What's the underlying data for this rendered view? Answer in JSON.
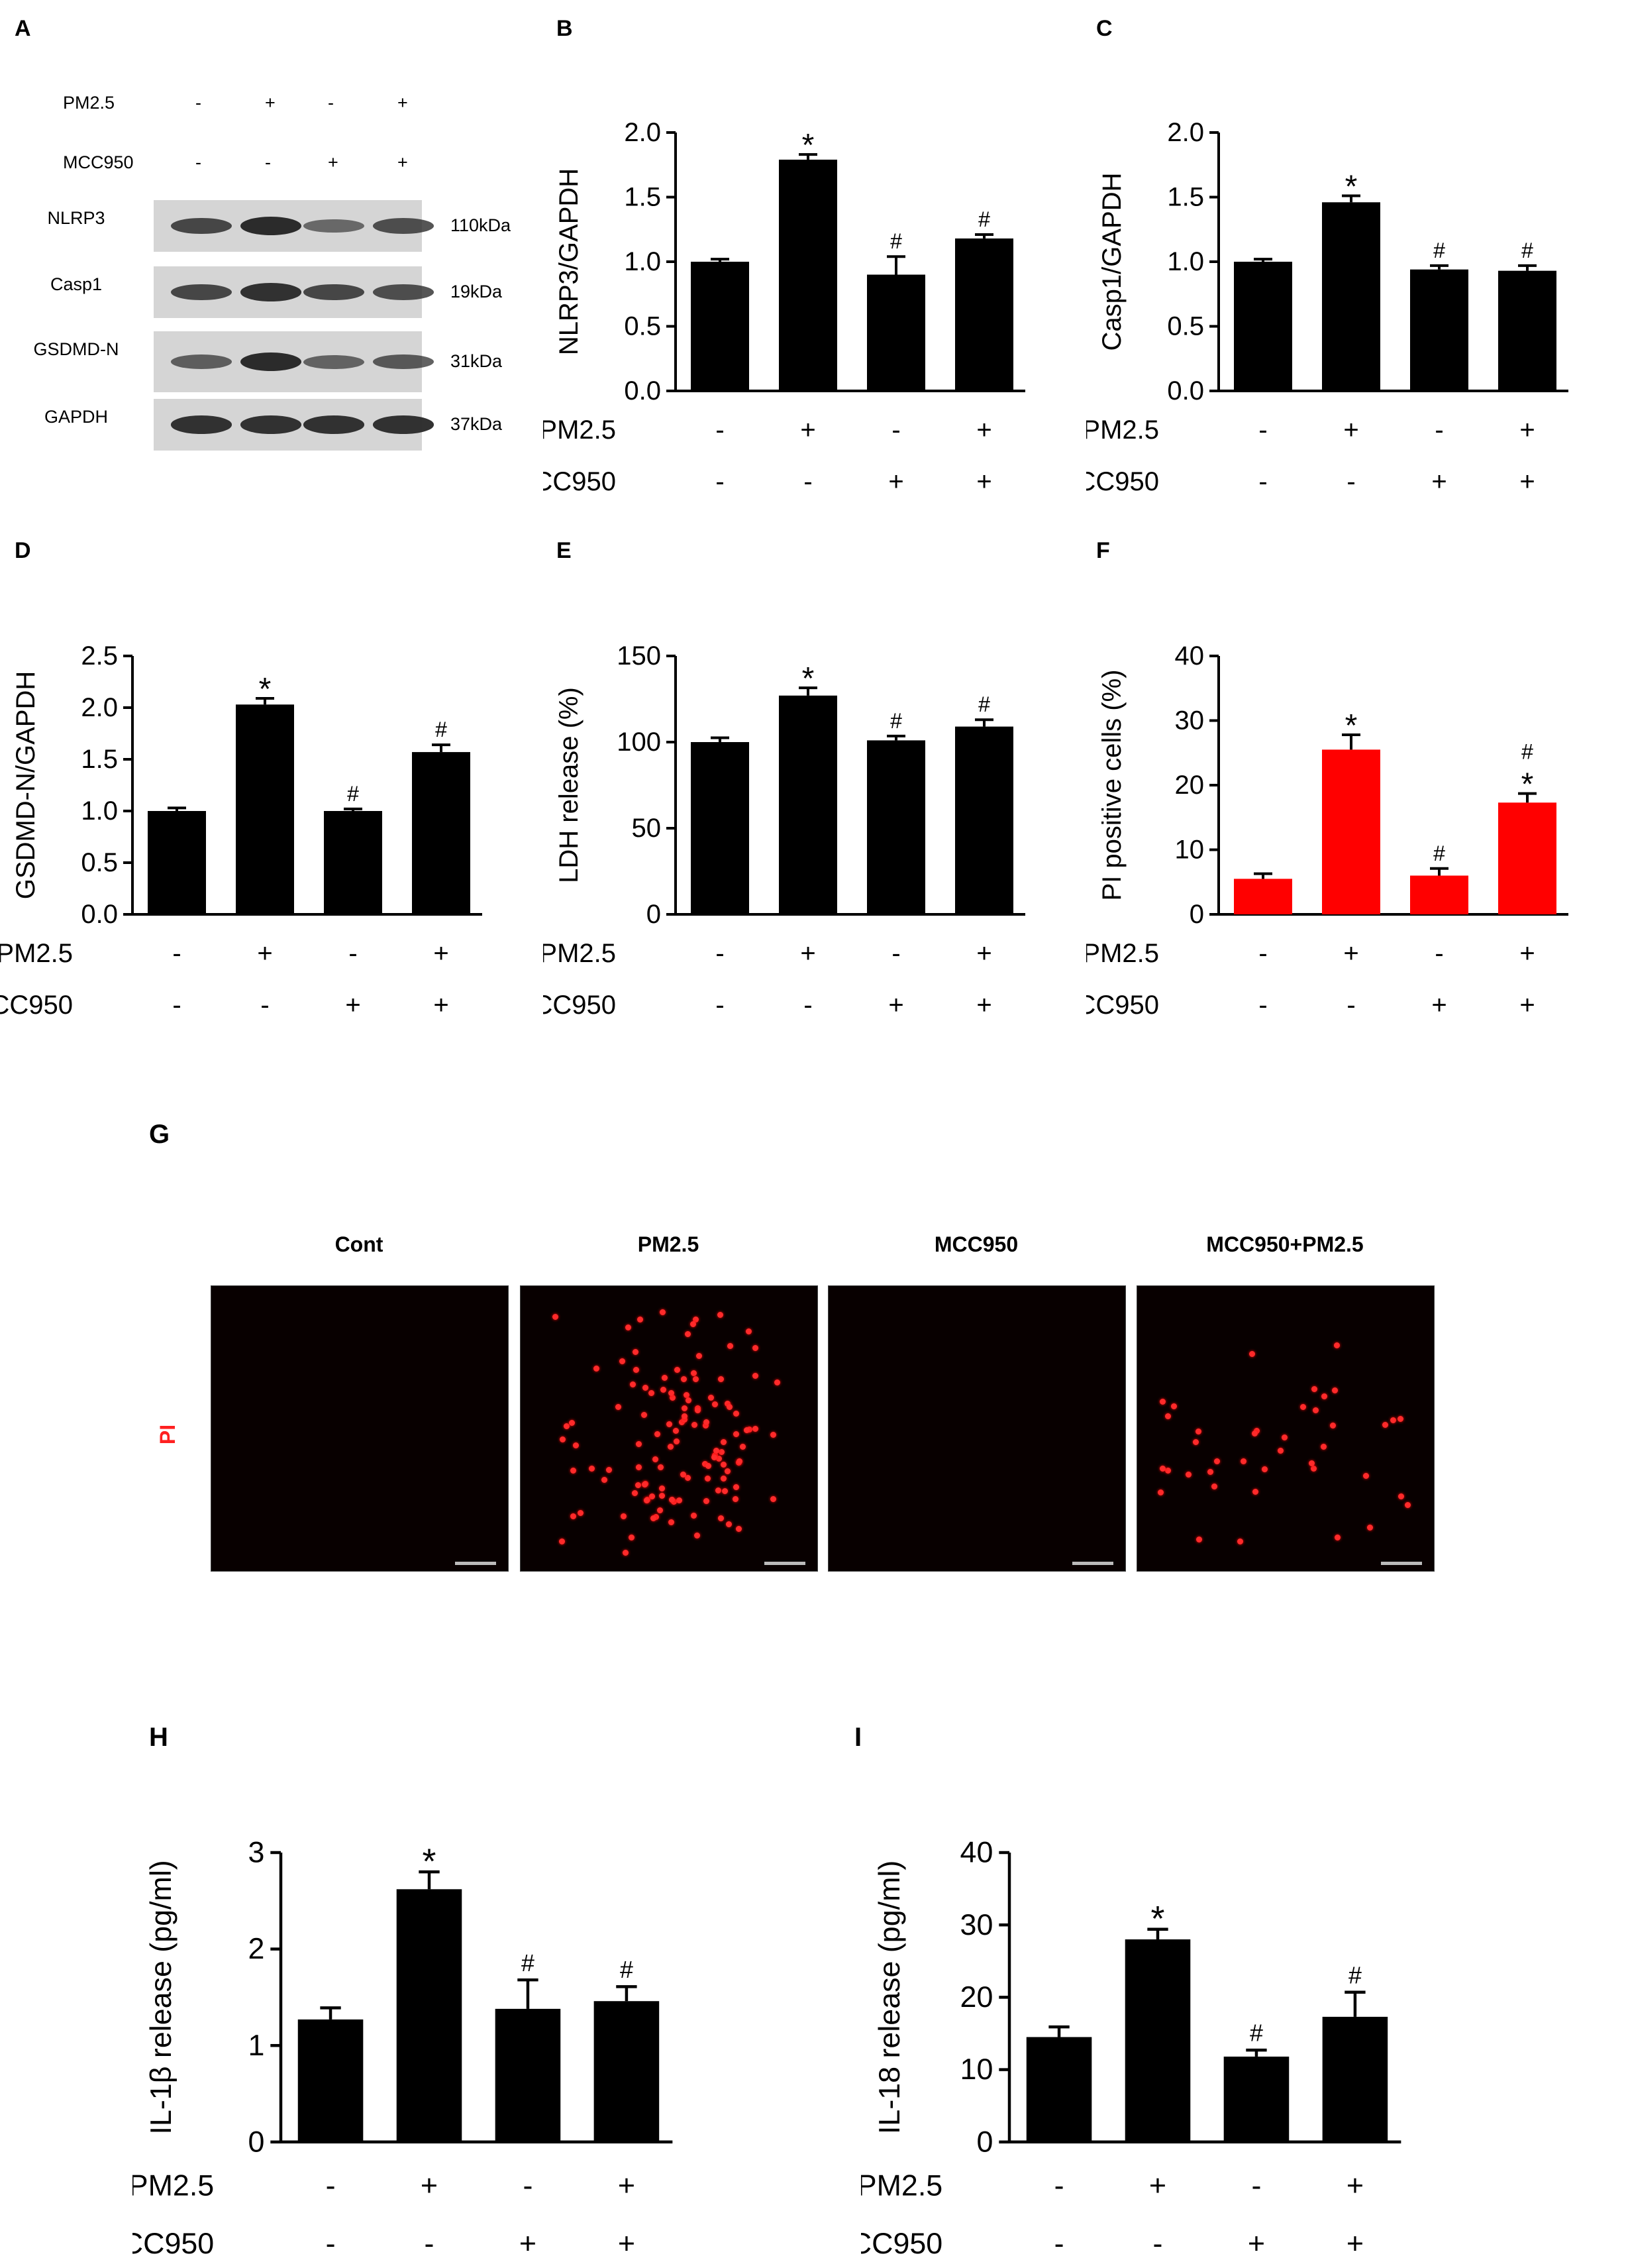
{
  "panel_labels": {
    "A": "A",
    "B": "B",
    "C": "C",
    "D": "D",
    "E": "E",
    "F": "F",
    "G": "G",
    "H": "H",
    "I": "I"
  },
  "western_blot": {
    "rows": [
      {
        "name": "PM2.5",
        "values": [
          "-",
          "+",
          "-",
          "+"
        ]
      },
      {
        "name": "MCC950",
        "values": [
          "-",
          "-",
          "+",
          "+"
        ]
      }
    ],
    "proteins": [
      {
        "name": "NLRP3",
        "size": "110kDa",
        "intensity": [
          0.75,
          1.0,
          0.45,
          0.7
        ]
      },
      {
        "name": "Casp1",
        "size": "19kDa",
        "intensity": [
          0.75,
          0.95,
          0.75,
          0.7
        ]
      },
      {
        "name": "GSDMD-N",
        "size": "31kDa",
        "intensity": [
          0.55,
          1.0,
          0.5,
          0.6
        ]
      },
      {
        "name": "GAPDH",
        "size": "37kDa",
        "intensity": [
          0.95,
          0.95,
          0.95,
          0.95
        ]
      }
    ]
  },
  "groups": {
    "row1_label": "PM2.5",
    "row1": [
      "-",
      "+",
      "-",
      "+"
    ],
    "row2_label": "MCC950",
    "row2": [
      "-",
      "-",
      "+",
      "+"
    ]
  },
  "chart_data": [
    {
      "id": "B",
      "type": "bar",
      "ylabel": "NLRP3/GAPDH",
      "ylim": [
        0,
        2.0
      ],
      "ticks": [
        "0.0",
        "0.5",
        "1.0",
        "1.5",
        "2.0"
      ],
      "values": [
        1.0,
        1.79,
        0.9,
        1.18
      ],
      "errors": [
        0.02,
        0.04,
        0.14,
        0.03
      ],
      "color": "#000000",
      "annotations": [
        [],
        [
          "*"
        ],
        [
          "#"
        ],
        [
          "#"
        ]
      ]
    },
    {
      "id": "C",
      "type": "bar",
      "ylabel": "Casp1/GAPDH",
      "ylim": [
        0,
        2.0
      ],
      "ticks": [
        "0.0",
        "0.5",
        "1.0",
        "1.5",
        "2.0"
      ],
      "values": [
        1.0,
        1.46,
        0.94,
        0.93
      ],
      "errors": [
        0.02,
        0.05,
        0.03,
        0.04
      ],
      "color": "#000000",
      "annotations": [
        [],
        [
          "*"
        ],
        [
          "#"
        ],
        [
          "#"
        ]
      ]
    },
    {
      "id": "D",
      "type": "bar",
      "ylabel": "GSDMD-N/GAPDH",
      "ylim": [
        0,
        2.5
      ],
      "ticks": [
        "0.0",
        "0.5",
        "1.0",
        "1.5",
        "2.0",
        "2.5"
      ],
      "values": [
        1.0,
        2.03,
        1.0,
        1.57
      ],
      "errors": [
        0.03,
        0.06,
        0.02,
        0.07
      ],
      "color": "#000000",
      "annotations": [
        [],
        [
          "*"
        ],
        [
          "#"
        ],
        [
          "#"
        ]
      ]
    },
    {
      "id": "E",
      "type": "bar",
      "ylabel": "LDH release (%)",
      "ylim": [
        0,
        150
      ],
      "ticks": [
        "0",
        "50",
        "100",
        "150"
      ],
      "values": [
        100,
        127,
        101,
        109
      ],
      "errors": [
        2.5,
        4.5,
        2.5,
        4.0
      ],
      "color": "#000000",
      "annotations": [
        [],
        [
          "*"
        ],
        [
          "#"
        ],
        [
          "#"
        ]
      ]
    },
    {
      "id": "F",
      "type": "bar",
      "ylabel": "PI positive cells (%)",
      "ylim": [
        0,
        40
      ],
      "ticks": [
        "0",
        "10",
        "20",
        "30",
        "40"
      ],
      "values": [
        5.5,
        25.5,
        6.0,
        17.3
      ],
      "errors": [
        0.8,
        2.3,
        1.1,
        1.4
      ],
      "color": "#ff0000",
      "annotations": [
        [],
        [
          "*"
        ],
        [
          "#"
        ],
        [
          "*",
          "#"
        ]
      ]
    },
    {
      "id": "H",
      "type": "bar",
      "ylabel": "IL-1β release (pg/ml)",
      "ylim": [
        0,
        3
      ],
      "ticks": [
        "0",
        "1",
        "2",
        "3"
      ],
      "values": [
        1.27,
        2.62,
        1.38,
        1.46
      ],
      "errors": [
        0.12,
        0.18,
        0.3,
        0.15
      ],
      "color": "#000000",
      "annotations": [
        [],
        [
          "*"
        ],
        [
          "#"
        ],
        [
          "#"
        ]
      ]
    },
    {
      "id": "I",
      "type": "bar",
      "ylabel": "IL-18 release (pg/ml)",
      "ylim": [
        0,
        40
      ],
      "ticks": [
        "0",
        "10",
        "20",
        "30",
        "40"
      ],
      "values": [
        14.5,
        28.0,
        11.8,
        17.3
      ],
      "errors": [
        1.4,
        1.4,
        0.9,
        3.4
      ],
      "color": "#000000",
      "annotations": [
        [],
        [
          "*"
        ],
        [
          "#"
        ],
        [
          "#"
        ]
      ]
    }
  ],
  "microscopy": {
    "stain_label": "PI",
    "conditions": [
      "Cont",
      "PM2.5",
      "MCC950",
      "MCC950+PM2.5"
    ],
    "cell_counts": [
      0,
      120,
      0,
      40
    ]
  }
}
